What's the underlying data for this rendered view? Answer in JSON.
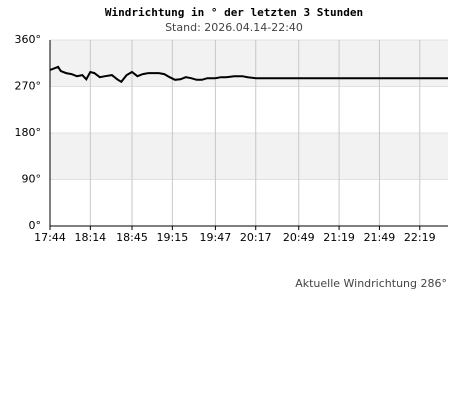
{
  "chart_data": {
    "type": "line",
    "title": "Windrichtung in ° der letzten 3 Stunden",
    "subtitle": "Stand: 2026.04.14-22:40",
    "annotation": "Aktuelle Windrichtung 286°",
    "x": [
      "17:44",
      "17:50",
      "17:52",
      "17:56",
      "18:00",
      "18:04",
      "18:08",
      "18:11",
      "18:14",
      "18:17",
      "18:21",
      "18:25",
      "18:30",
      "18:34",
      "18:37",
      "18:41",
      "18:45",
      "18:49",
      "18:53",
      "18:57",
      "19:01",
      "19:05",
      "19:09",
      "19:13",
      "19:17",
      "19:21",
      "19:25",
      "19:29",
      "19:33",
      "19:37",
      "19:41",
      "19:47",
      "19:51",
      "19:55",
      "20:01",
      "20:07",
      "20:11",
      "20:17",
      "20:49",
      "21:19",
      "21:49",
      "22:19",
      "22:40"
    ],
    "values": [
      302,
      308,
      300,
      296,
      294,
      290,
      292,
      284,
      298,
      296,
      288,
      290,
      292,
      284,
      279,
      292,
      298,
      290,
      294,
      296,
      296,
      296,
      294,
      288,
      283,
      284,
      288,
      286,
      283,
      283,
      286,
      286,
      288,
      288,
      290,
      290,
      288,
      286,
      286,
      286,
      286,
      286,
      286
    ],
    "color": "#000000",
    "xlim": [
      "17:44",
      "22:40"
    ],
    "xticks": [
      "17:44",
      "18:14",
      "18:45",
      "19:15",
      "19:47",
      "20:17",
      "20:49",
      "21:19",
      "21:49",
      "22:19"
    ],
    "ylim": [
      0,
      360
    ],
    "yticks": [
      {
        "value": 0,
        "label": "0°"
      },
      {
        "value": 90,
        "label": "90°"
      },
      {
        "value": 180,
        "label": "180°"
      },
      {
        "value": 270,
        "label": "270°"
      },
      {
        "value": 360,
        "label": "360°"
      }
    ],
    "shaded_bands": [
      [
        90,
        180
      ],
      [
        270,
        360
      ]
    ],
    "grid": true
  }
}
